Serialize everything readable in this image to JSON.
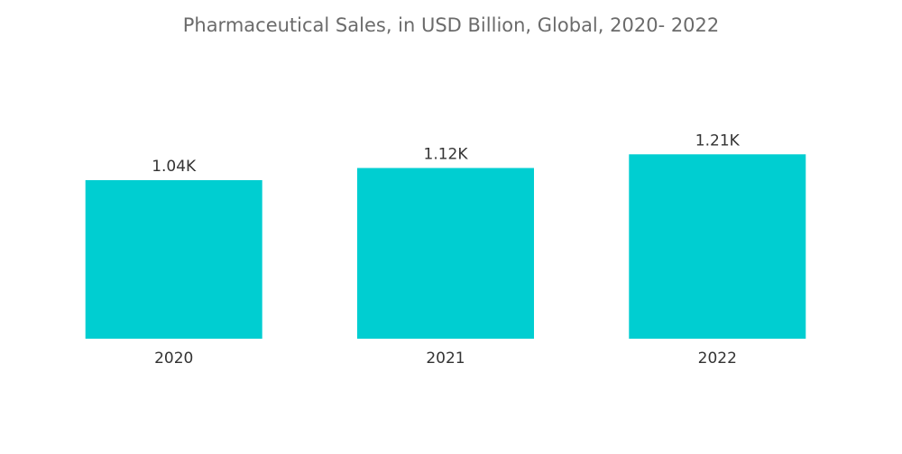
{
  "chart_data": {
    "type": "bar",
    "title": "Pharmaceutical Sales, in USD Billion, Global, 2020- 2022",
    "categories": [
      "2020",
      "2021",
      "2022"
    ],
    "values": [
      1040,
      1120,
      1210
    ],
    "value_labels": [
      "1.04K",
      "1.12K",
      "1.21K"
    ],
    "xlabel": "",
    "ylabel": "",
    "ylim": [
      0,
      1500
    ],
    "grid": false,
    "legend": "none",
    "colors": {
      "bar": "#00CED1"
    }
  }
}
